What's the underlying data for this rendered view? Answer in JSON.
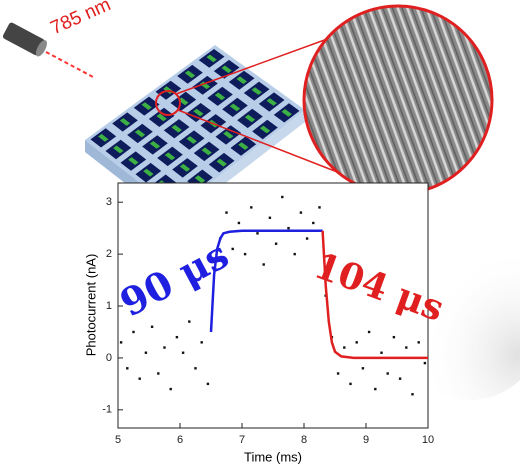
{
  "chart_data": {
    "type": "scatter",
    "x_label": "Time (ms)",
    "y_label": "Photocurrent (nA)",
    "annotations": [
      "785 nm",
      "90 μs",
      "104 μs"
    ],
    "xlim": [
      5,
      10
    ],
    "ylim": [
      -1.35,
      3.37
    ],
    "xticks": [
      5,
      6,
      7,
      8,
      9,
      10
    ],
    "yticks": [
      -1,
      0,
      1,
      2,
      3
    ],
    "series": [
      {
        "style": "points",
        "color": "#111111",
        "x": [
          5.05,
          5.15,
          5.25,
          5.35,
          5.45,
          5.55,
          5.65,
          5.75,
          5.85,
          5.95,
          6.05,
          6.15,
          6.25,
          6.35,
          6.45,
          6.55,
          6.65,
          6.75,
          6.85,
          6.95,
          7.05,
          7.15,
          7.25,
          7.35,
          7.45,
          7.55,
          7.65,
          7.75,
          7.85,
          7.95,
          8.05,
          8.15,
          8.25,
          8.35,
          8.45,
          8.55,
          8.65,
          8.75,
          8.85,
          8.95,
          9.05,
          9.15,
          9.25,
          9.35,
          9.45,
          9.55,
          9.65,
          9.75,
          9.85,
          9.95
        ],
        "values": [
          0.3,
          -0.2,
          0.5,
          -0.4,
          0.1,
          0.6,
          -0.3,
          0.2,
          -0.6,
          0.4,
          0.1,
          0.7,
          -0.2,
          0.3,
          -0.5,
          1.9,
          2.3,
          2.8,
          2.1,
          2.6,
          2.0,
          2.9,
          2.4,
          1.8,
          2.7,
          2.2,
          3.1,
          2.5,
          2.0,
          2.8,
          2.3,
          2.6,
          2.9,
          1.2,
          0.4,
          -0.3,
          0.2,
          -0.5,
          0.3,
          -0.2,
          0.5,
          -0.6,
          0.1,
          -0.3,
          0.4,
          -0.4,
          0.2,
          -0.7,
          0.3,
          -0.1
        ]
      },
      {
        "style": "line",
        "color": "#1f1fe0",
        "x": [
          6.5,
          6.55,
          6.6,
          6.65,
          6.7,
          6.8,
          7.0,
          8.3
        ],
        "values": [
          0.5,
          1.6,
          2.1,
          2.3,
          2.4,
          2.43,
          2.45,
          2.45
        ]
      },
      {
        "style": "line",
        "color": "#e02020",
        "x": [
          8.3,
          8.35,
          8.4,
          8.45,
          8.5,
          8.6,
          8.8,
          10
        ],
        "values": [
          2.45,
          1.4,
          0.7,
          0.3,
          0.12,
          0.03,
          0,
          0
        ]
      }
    ]
  }
}
